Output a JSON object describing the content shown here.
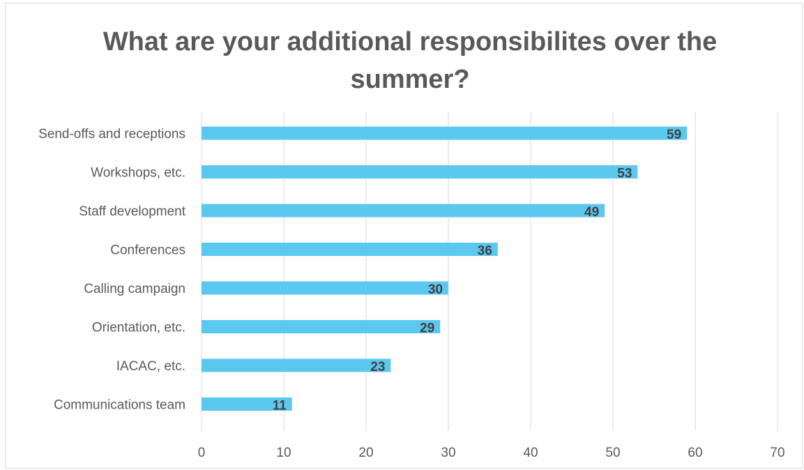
{
  "chart_data": {
    "type": "bar",
    "orientation": "horizontal",
    "title": "What are your additional responsibilites over the summer?",
    "categories": [
      "Send-offs and receptions",
      "Workshops, etc.",
      "Staff development",
      "Conferences",
      "Calling campaign",
      "Orientation, etc.",
      "IACAC, etc.",
      "Communications team"
    ],
    "values": [
      59,
      53,
      49,
      36,
      30,
      29,
      23,
      11
    ],
    "xlim": [
      0,
      70
    ],
    "xticks": [
      0,
      10,
      20,
      30,
      40,
      50,
      60,
      70
    ],
    "grid": "vertical",
    "data_labels": "inside-end",
    "bar_color": "#5BC8F0"
  }
}
